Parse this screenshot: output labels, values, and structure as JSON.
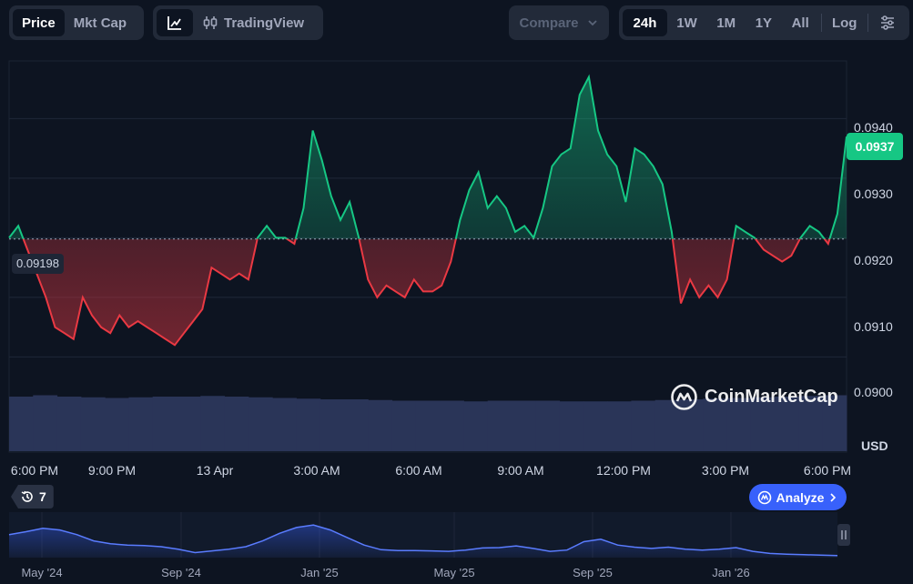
{
  "toolbar": {
    "price_label": "Price",
    "mktcap_label": "Mkt Cap",
    "tradingview_label": "TradingView",
    "compare_label": "Compare",
    "ranges": [
      "24h",
      "1W",
      "1M",
      "1Y",
      "All"
    ],
    "active_range": "24h",
    "log_label": "Log"
  },
  "chart_data": {
    "type": "line",
    "ylabel": "USD",
    "ylim": [
      0.08935,
      0.0948
    ],
    "y_ticks": [
      "0.0940",
      "0.0930",
      "0.0920",
      "0.0910",
      "0.0900"
    ],
    "baseline_value": 0.09198,
    "baseline_label": "0.09198",
    "current_value": 0.0937,
    "current_label": "0.0937",
    "x_tick_labels": [
      "6:00 PM",
      "9:00 PM",
      "13 Apr",
      "3:00 AM",
      "6:00 AM",
      "9:00 AM",
      "12:00 PM",
      "3:00 PM",
      "6:00 PM"
    ],
    "price_series": [
      0.092,
      0.0922,
      0.0918,
      0.0914,
      0.091,
      0.0905,
      0.0904,
      0.0903,
      0.091,
      0.0907,
      0.0905,
      0.0904,
      0.0907,
      0.0905,
      0.0906,
      0.0905,
      0.0904,
      0.0903,
      0.0902,
      0.0904,
      0.0906,
      0.0908,
      0.0915,
      0.0914,
      0.0913,
      0.0914,
      0.0913,
      0.092,
      0.0922,
      0.092,
      0.092,
      0.0919,
      0.0925,
      0.0938,
      0.0933,
      0.0927,
      0.0923,
      0.0926,
      0.092,
      0.0913,
      0.091,
      0.0912,
      0.0911,
      0.091,
      0.0913,
      0.0911,
      0.0911,
      0.0912,
      0.0916,
      0.0923,
      0.0928,
      0.0931,
      0.0925,
      0.0927,
      0.0925,
      0.0921,
      0.0922,
      0.092,
      0.0925,
      0.0932,
      0.0934,
      0.0935,
      0.0944,
      0.0947,
      0.0938,
      0.0934,
      0.0932,
      0.0926,
      0.0935,
      0.0934,
      0.0932,
      0.0929,
      0.0921,
      0.0909,
      0.0913,
      0.091,
      0.0912,
      0.091,
      0.0913,
      0.0922,
      0.0921,
      0.092,
      0.0918,
      0.0917,
      0.0916,
      0.0917,
      0.092,
      0.0922,
      0.0921,
      0.0919,
      0.0924,
      0.0937
    ],
    "volume_series": [
      0.8,
      0.82,
      0.8,
      0.79,
      0.78,
      0.79,
      0.8,
      0.8,
      0.81,
      0.8,
      0.79,
      0.78,
      0.77,
      0.76,
      0.76,
      0.75,
      0.74,
      0.74,
      0.74,
      0.73,
      0.74,
      0.74,
      0.74,
      0.73,
      0.73,
      0.73,
      0.74,
      0.75,
      0.76,
      0.77,
      0.78,
      0.79,
      0.8,
      0.81,
      0.82
    ],
    "navigator_labels": [
      "May '24",
      "Sep '24",
      "Jan '25",
      "May '25",
      "Sep '25",
      "Jan '26"
    ],
    "navigator_series": [
      0.55,
      0.62,
      0.7,
      0.66,
      0.55,
      0.4,
      0.33,
      0.3,
      0.29,
      0.26,
      0.2,
      0.12,
      0.16,
      0.2,
      0.26,
      0.4,
      0.58,
      0.72,
      0.78,
      0.66,
      0.48,
      0.3,
      0.19,
      0.17,
      0.17,
      0.16,
      0.15,
      0.18,
      0.23,
      0.24,
      0.28,
      0.22,
      0.15,
      0.18,
      0.38,
      0.44,
      0.3,
      0.25,
      0.22,
      0.25,
      0.2,
      0.18,
      0.2,
      0.24,
      0.15,
      0.1,
      0.08,
      0.07,
      0.06,
      0.05
    ]
  },
  "badges": {
    "history_count": "7",
    "analyze_label": "Analyze",
    "watermark": "CoinMarketCap"
  },
  "colors": {
    "up": "#16c784",
    "down": "#ea3943",
    "accent": "#3861fb"
  }
}
